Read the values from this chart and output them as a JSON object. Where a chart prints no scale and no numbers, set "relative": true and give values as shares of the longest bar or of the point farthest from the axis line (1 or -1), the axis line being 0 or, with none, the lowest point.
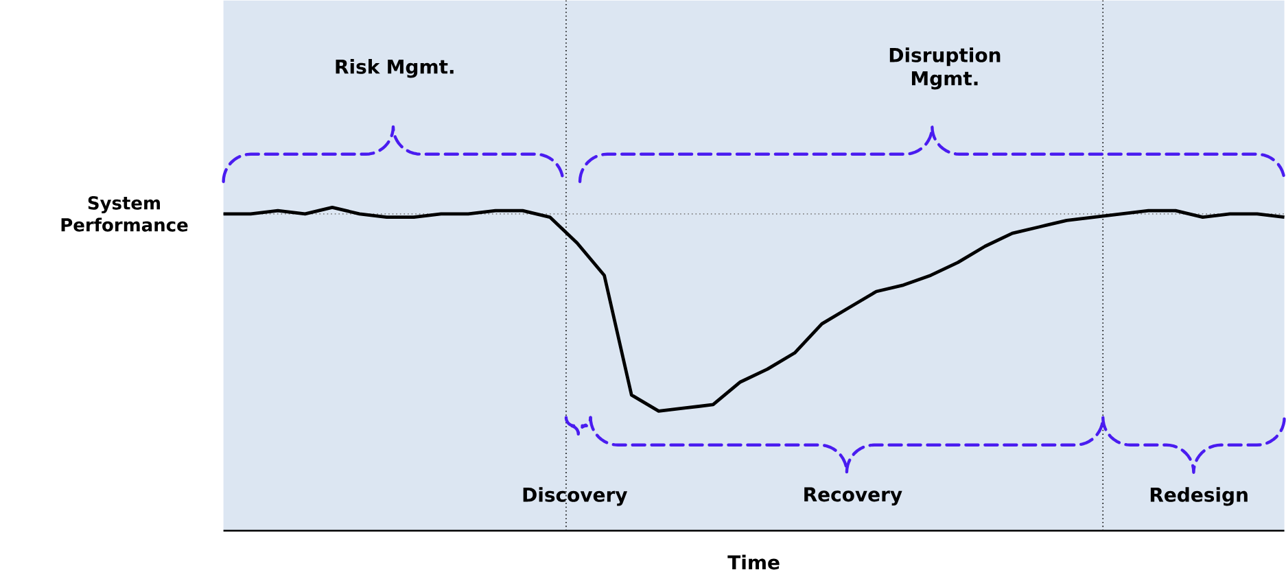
{
  "chart_data": {
    "type": "line",
    "relative": true,
    "color": "#000000",
    "xlabel": "Time",
    "ylabel": "System Performance",
    "categories": [
      null,
      null,
      null,
      null,
      null,
      null,
      null,
      null,
      null,
      null,
      null,
      null,
      null,
      null,
      null,
      null,
      null,
      null,
      null,
      null,
      null,
      null,
      null,
      null,
      null,
      null,
      null,
      null,
      null,
      null,
      null,
      null,
      null,
      null,
      null,
      null,
      null,
      null,
      null,
      null
    ],
    "values": [
      0.98,
      0.98,
      0.99,
      0.98,
      1.0,
      0.98,
      0.97,
      0.97,
      0.98,
      0.98,
      0.99,
      0.99,
      0.97,
      0.89,
      0.79,
      0.42,
      0.37,
      0.38,
      0.39,
      0.46,
      0.5,
      0.55,
      0.64,
      0.69,
      0.74,
      0.76,
      0.79,
      0.83,
      0.88,
      0.92,
      0.94,
      0.96,
      0.97,
      0.98,
      0.99,
      0.99,
      0.97,
      0.98,
      0.98,
      0.97
    ],
    "ref_lines": [
      {
        "axis": "y",
        "value": 0.98,
        "color": "#808080",
        "line_style": "dotted"
      }
    ],
    "annotations": [
      "Risk Mgmt.",
      "Disruption Mgmt.",
      "Discovery",
      "Recovery",
      "Redesign"
    ]
  }
}
